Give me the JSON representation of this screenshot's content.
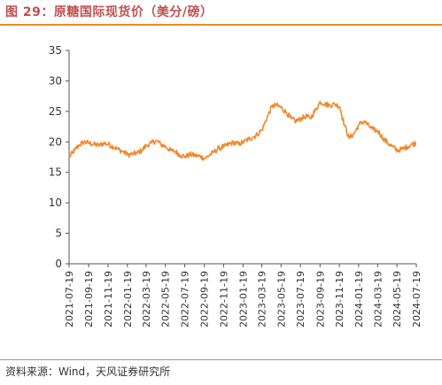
{
  "title": "图 29：原糖国际现货价（美分/磅）",
  "source": "资料来源：Wind，天风证券研究所",
  "colors": {
    "line": "#f0892c",
    "title": "#c0504d",
    "rule": "#e98a2b"
  },
  "chart_data": {
    "type": "line",
    "title": "图 29：原糖国际现货价（美分/磅）",
    "xlabel": "",
    "ylabel": "",
    "ylim": [
      0,
      35
    ],
    "yticks": [
      0,
      5,
      10,
      15,
      20,
      25,
      30,
      35
    ],
    "grid": false,
    "legend": "none",
    "x_tick_labels": [
      "2021-07-19",
      "2021-09-19",
      "2021-11-19",
      "2022-01-19",
      "2022-03-19",
      "2022-05-19",
      "2022-07-19",
      "2022-09-19",
      "2022-11-19",
      "2023-01-19",
      "2023-03-19",
      "2023-05-19",
      "2023-07-19",
      "2023-09-19",
      "2023-11-19",
      "2024-01-19",
      "2024-03-19",
      "2024-05-19",
      "2024-07-19"
    ],
    "series": [
      {
        "name": "",
        "color": "#f0892c",
        "x": [
          "2021-07-19",
          "2021-08-05",
          "2021-08-20",
          "2021-09-05",
          "2021-09-20",
          "2021-10-05",
          "2021-10-20",
          "2021-11-05",
          "2021-11-20",
          "2021-12-05",
          "2021-12-20",
          "2022-01-05",
          "2022-01-20",
          "2022-02-05",
          "2022-02-20",
          "2022-03-05",
          "2022-03-20",
          "2022-04-05",
          "2022-04-20",
          "2022-05-05",
          "2022-05-20",
          "2022-06-05",
          "2022-06-20",
          "2022-07-05",
          "2022-07-20",
          "2022-08-05",
          "2022-08-20",
          "2022-09-05",
          "2022-09-20",
          "2022-10-05",
          "2022-10-20",
          "2022-11-05",
          "2022-11-20",
          "2022-12-05",
          "2022-12-20",
          "2023-01-05",
          "2023-01-20",
          "2023-02-05",
          "2023-02-20",
          "2023-03-05",
          "2023-03-20",
          "2023-04-05",
          "2023-04-20",
          "2023-05-05",
          "2023-05-20",
          "2023-06-05",
          "2023-06-20",
          "2023-07-05",
          "2023-07-20",
          "2023-08-05",
          "2023-08-20",
          "2023-09-05",
          "2023-09-20",
          "2023-10-05",
          "2023-10-20",
          "2023-11-05",
          "2023-11-20",
          "2023-12-05",
          "2023-12-20",
          "2024-01-05",
          "2024-01-20",
          "2024-02-05",
          "2024-02-20",
          "2024-03-05",
          "2024-03-20",
          "2024-04-05",
          "2024-04-20",
          "2024-05-05",
          "2024-05-20",
          "2024-06-05",
          "2024-06-20",
          "2024-07-05",
          "2024-07-19"
        ],
        "values": [
          17.5,
          18.6,
          19.5,
          20.0,
          19.8,
          19.6,
          19.4,
          19.8,
          19.6,
          19.2,
          18.8,
          18.4,
          17.9,
          18.0,
          18.2,
          18.6,
          19.4,
          19.8,
          20.2,
          19.6,
          19.2,
          18.6,
          18.4,
          17.8,
          17.6,
          17.9,
          17.8,
          17.6,
          17.3,
          17.8,
          18.4,
          19.0,
          19.2,
          19.6,
          19.9,
          19.6,
          20.0,
          20.4,
          20.8,
          21.2,
          22.0,
          24.0,
          25.8,
          26.0,
          25.6,
          24.8,
          23.8,
          23.4,
          23.8,
          24.2,
          23.9,
          25.2,
          26.6,
          26.2,
          26.0,
          26.2,
          25.8,
          22.8,
          20.6,
          21.4,
          22.8,
          23.4,
          22.6,
          22.0,
          21.8,
          20.6,
          19.8,
          19.2,
          18.6,
          18.8,
          19.2,
          19.6,
          19.8
        ]
      }
    ]
  }
}
